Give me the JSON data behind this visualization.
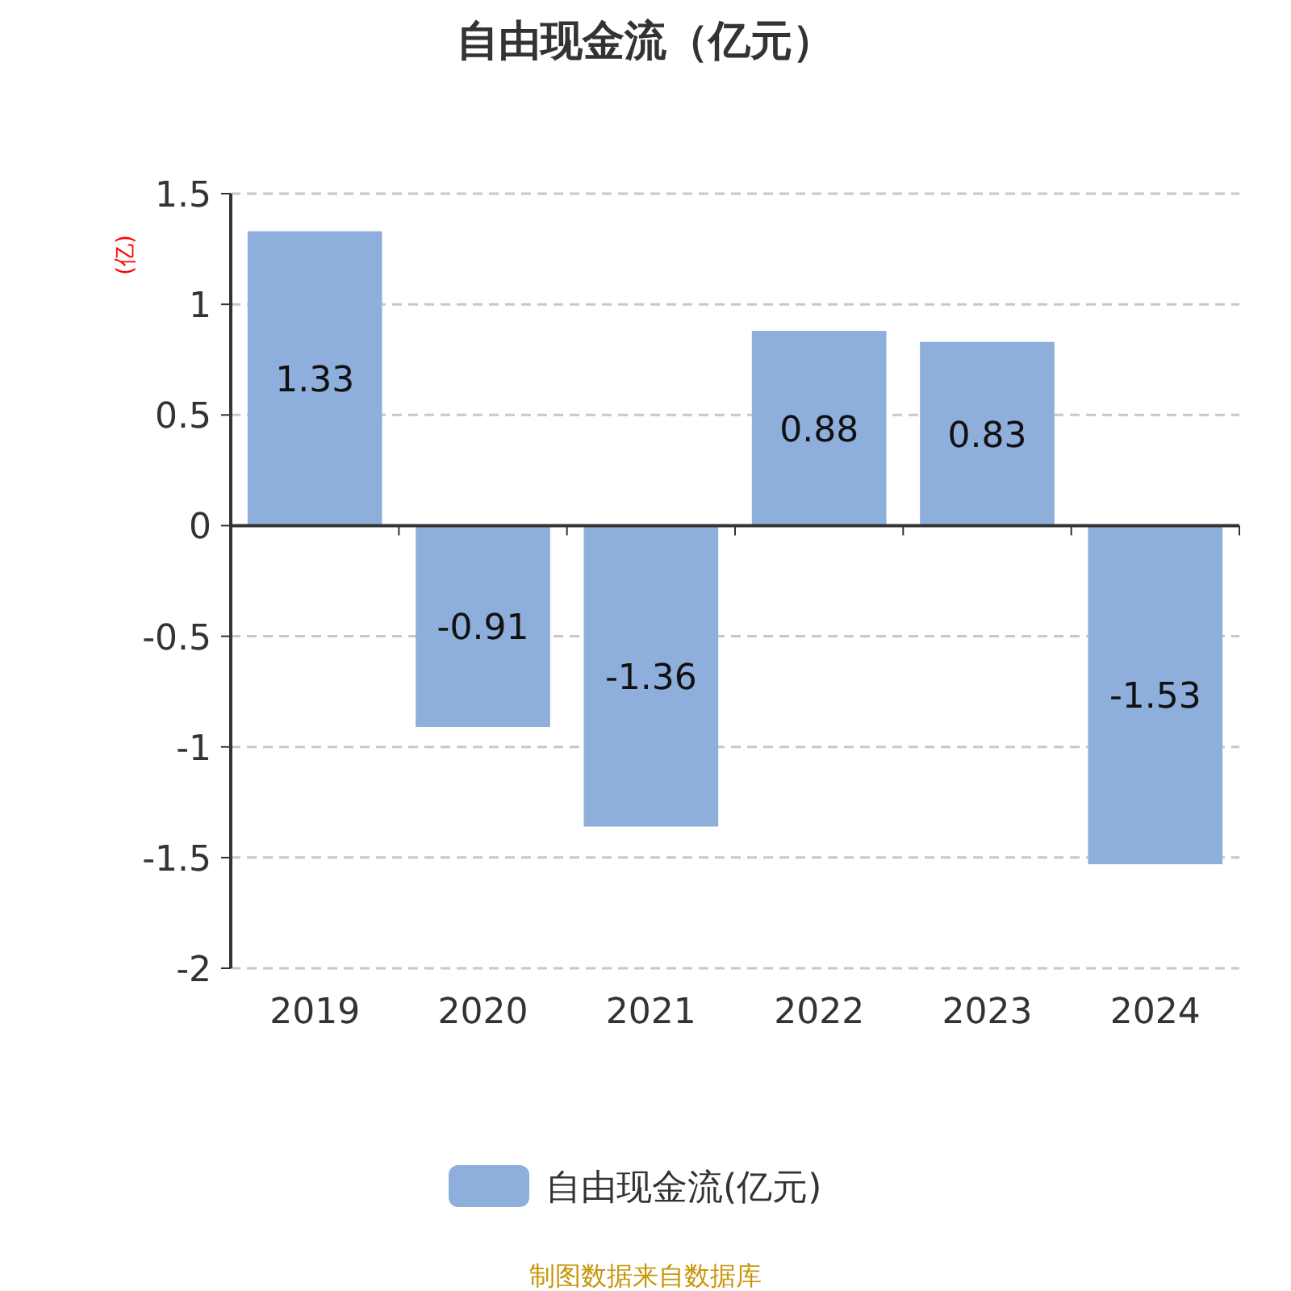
{
  "chart_data": {
    "type": "bar",
    "title": "自由现金流（亿元）",
    "ylabel": "(亿)",
    "categories": [
      "2019",
      "2020",
      "2021",
      "2022",
      "2023",
      "2024"
    ],
    "series": [
      {
        "name": "自由现金流(亿元)",
        "color": "#8eaedb",
        "values": [
          1.33,
          -0.91,
          -1.36,
          0.88,
          0.83,
          -1.53
        ]
      }
    ],
    "ylim": [
      -2,
      1.5
    ],
    "yticks": [
      -2,
      -1.5,
      -1,
      -0.5,
      0,
      0.5,
      1,
      1.5
    ],
    "grid": "y",
    "legend": "bottom",
    "data_labels": true,
    "annotations": [
      "制图数据来自数据库"
    ]
  }
}
